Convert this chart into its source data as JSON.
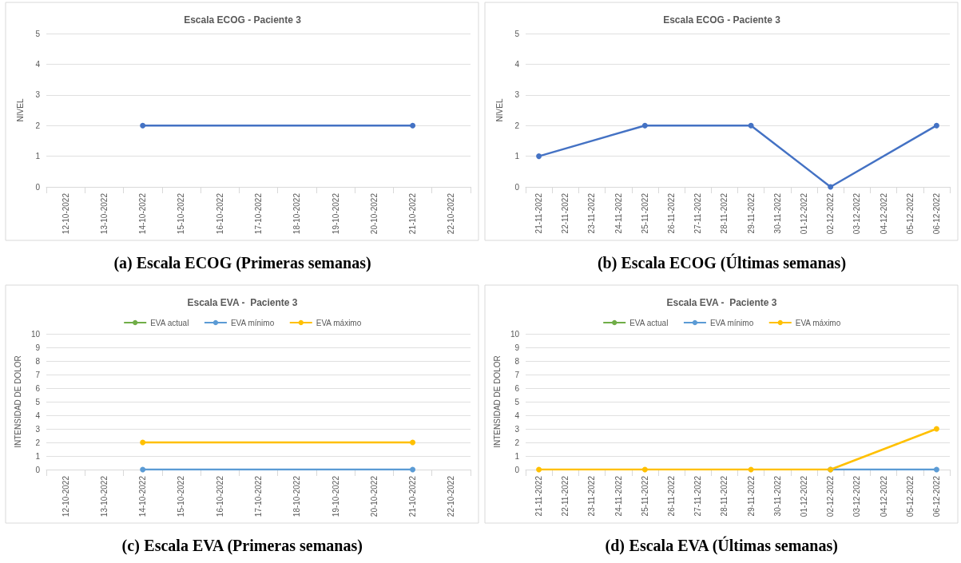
{
  "chart_data": [
    {
      "type": "line",
      "title": "Escala ECOG - Paciente 3",
      "ylabel": "NIVEL",
      "categories": [
        "12-10-2022",
        "13-10-2022",
        "14-10-2022",
        "15-10-2022",
        "16-10-2022",
        "17-10-2022",
        "18-10-2022",
        "19-10-2022",
        "20-10-2022",
        "21-10-2022",
        "22-10-2022"
      ],
      "series": [
        {
          "color": "#4472c4",
          "values": [
            null,
            null,
            2,
            null,
            null,
            null,
            null,
            null,
            null,
            2,
            null
          ]
        }
      ],
      "ylim": [
        0,
        5
      ],
      "yticks": [
        0,
        1,
        2,
        3,
        4,
        5
      ],
      "grid": "y",
      "legend": false,
      "marker": "circle",
      "line_style": "solid",
      "annotations": [
        "(a) Escala ECOG (Primeras semanas)"
      ]
    },
    {
      "type": "line",
      "title": "Escala ECOG - Paciente 3",
      "ylabel": "NIVEL",
      "categories": [
        "21-11-2022",
        "22-11-2022",
        "23-11-2022",
        "24-11-2022",
        "25-11-2022",
        "26-11-2022",
        "27-11-2022",
        "28-11-2022",
        "29-11-2022",
        "30-11-2022",
        "01-12-2022",
        "02-12-2022",
        "03-12-2022",
        "04-12-2022",
        "05-12-2022",
        "06-12-2022"
      ],
      "series": [
        {
          "color": "#4472c4",
          "values": [
            1,
            null,
            null,
            null,
            2,
            null,
            null,
            null,
            2,
            null,
            null,
            0,
            null,
            null,
            null,
            2
          ]
        }
      ],
      "ylim": [
        0,
        5
      ],
      "yticks": [
        0,
        1,
        2,
        3,
        4,
        5
      ],
      "grid": "y",
      "legend": false,
      "marker": "circle",
      "line_style": "solid",
      "annotations": [
        "(b) Escala ECOG (Últimas semanas)"
      ]
    },
    {
      "type": "line",
      "title": "Escala EVA -  Paciente 3",
      "ylabel": "INTENSIDAD DE DOLOR",
      "categories": [
        "12-10-2022",
        "13-10-2022",
        "14-10-2022",
        "15-10-2022",
        "16-10-2022",
        "17-10-2022",
        "18-10-2022",
        "19-10-2022",
        "20-10-2022",
        "21-10-2022",
        "22-10-2022"
      ],
      "series": [
        {
          "name": "EVA actual",
          "color": "#70ad47",
          "values": [
            null,
            null,
            null,
            null,
            null,
            null,
            null,
            null,
            null,
            null,
            null
          ]
        },
        {
          "name": "EVA mínimo",
          "color": "#5b9bd5",
          "values": [
            null,
            null,
            0,
            null,
            null,
            null,
            null,
            null,
            null,
            0,
            null
          ]
        },
        {
          "name": "EVA máximo",
          "color": "#ffc000",
          "values": [
            null,
            null,
            2,
            null,
            null,
            null,
            null,
            null,
            null,
            2,
            null
          ]
        }
      ],
      "ylim": [
        0,
        10
      ],
      "yticks": [
        0,
        1,
        2,
        3,
        4,
        5,
        6,
        7,
        8,
        9,
        10
      ],
      "grid": "y",
      "legend": "top",
      "marker": "circle",
      "line_style": "solid",
      "annotations": [
        "(c) Escala EVA (Primeras semanas)"
      ]
    },
    {
      "type": "line",
      "title": "Escala EVA -  Paciente 3",
      "ylabel": "INTENSIDAD DE DOLOR",
      "categories": [
        "21-11-2022",
        "22-11-2022",
        "23-11-2022",
        "24-11-2022",
        "25-11-2022",
        "26-11-2022",
        "27-11-2022",
        "28-11-2022",
        "29-11-2022",
        "30-11-2022",
        "01-12-2022",
        "02-12-2022",
        "03-12-2022",
        "04-12-2022",
        "05-12-2022",
        "06-12-2022"
      ],
      "series": [
        {
          "name": "EVA actual",
          "color": "#70ad47",
          "values": [
            null,
            null,
            null,
            null,
            null,
            null,
            null,
            null,
            null,
            null,
            null,
            null,
            null,
            null,
            null,
            null
          ]
        },
        {
          "name": "EVA mínimo",
          "color": "#5b9bd5",
          "values": [
            null,
            null,
            null,
            null,
            null,
            null,
            null,
            null,
            null,
            null,
            null,
            0,
            null,
            null,
            null,
            0
          ]
        },
        {
          "name": "EVA máximo",
          "color": "#ffc000",
          "values": [
            0,
            null,
            null,
            null,
            0,
            null,
            null,
            null,
            0,
            null,
            null,
            0,
            null,
            null,
            null,
            3
          ]
        }
      ],
      "ylim": [
        0,
        10
      ],
      "yticks": [
        0,
        1,
        2,
        3,
        4,
        5,
        6,
        7,
        8,
        9,
        10
      ],
      "grid": "y",
      "legend": "top",
      "marker": "circle",
      "line_style": "solid",
      "annotations": [
        "(d) Escala EVA (Últimas semanas)"
      ]
    }
  ]
}
